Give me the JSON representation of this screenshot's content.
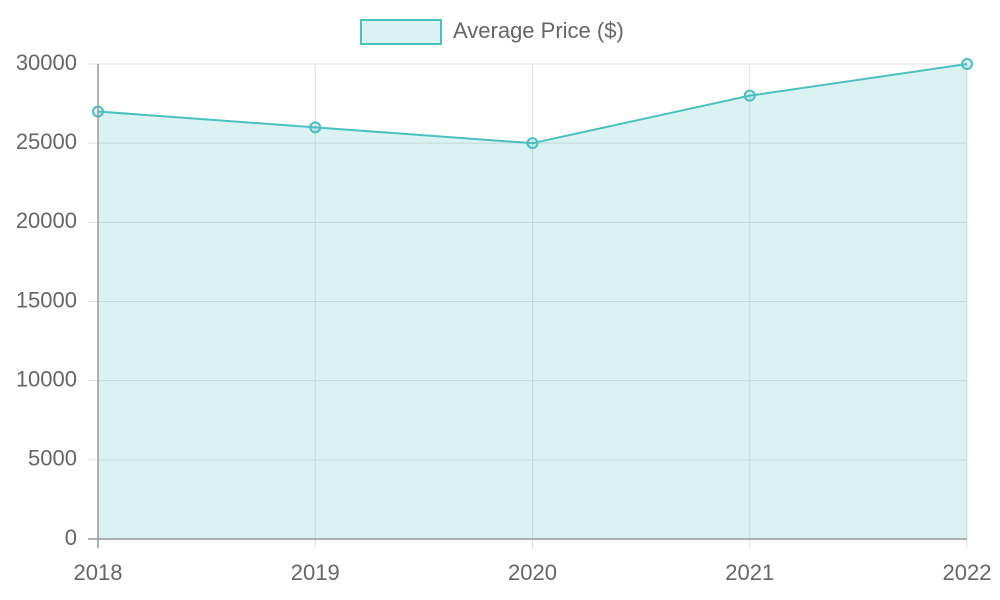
{
  "chart_data": {
    "type": "line",
    "categories": [
      "2018",
      "2019",
      "2020",
      "2021",
      "2022"
    ],
    "series": [
      {
        "name": "Average Price ($)",
        "color": "#4bc0c0",
        "values": [
          27000,
          26000,
          25000,
          28000,
          30000
        ]
      }
    ],
    "ylim": [
      0,
      30000
    ],
    "yticks": [
      0,
      5000,
      10000,
      15000,
      20000,
      25000,
      30000
    ],
    "grid": true,
    "fill": true,
    "legend": "top"
  }
}
